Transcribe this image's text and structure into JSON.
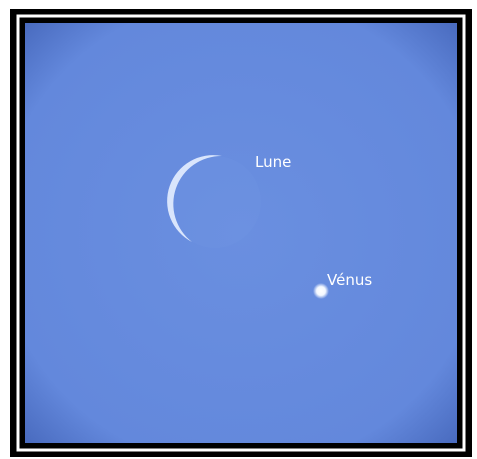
{
  "labels": {
    "moon": "Lune",
    "venus": "Vénus"
  }
}
